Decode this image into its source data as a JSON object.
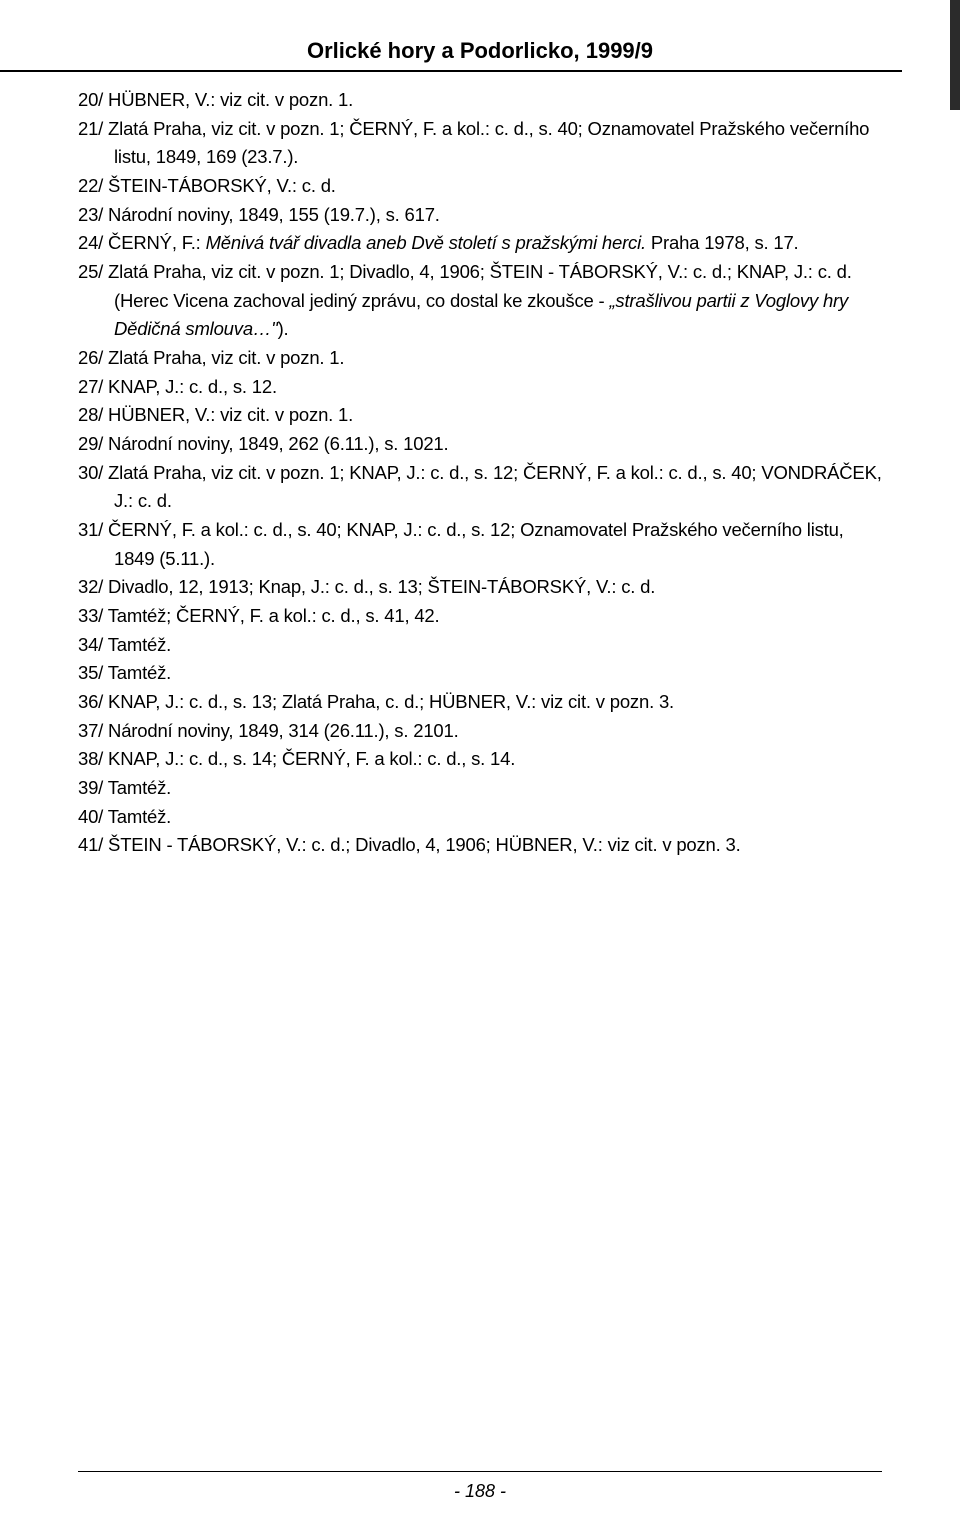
{
  "header": {
    "title": "Orlické hory a Podorlicko, 1999/9"
  },
  "references": [
    {
      "text": "20/ HÜBNER, V.: viz cit. v pozn. 1."
    },
    {
      "text": "21/ Zlatá Praha, viz cit. v pozn. 1; ČERNÝ, F. a kol.: c. d., s. 40; Oznamovatel Pražského večerního listu, 1849, 169 (23.7.)."
    },
    {
      "text": "22/ ŠTEIN-TÁBORSKÝ, V.: c. d."
    },
    {
      "text": "23/ Národní noviny, 1849, 155 (19.7.), s. 617."
    },
    {
      "html": "24/ ČERNÝ, F.: <span class=\"italic\">Měnivá tvář divadla aneb Dvě století s pražskými herci.</span> Praha 1978, s. 17."
    },
    {
      "html": "25/ Zlatá Praha, viz cit. v pozn. 1; Divadlo, 4, 1906; ŠTEIN - TÁBORSKÝ, V.: c. d.; KNAP, J.: c. d. (Herec Vicena zachoval jediný zprávu, co dostal ke zkoušce - <span class=\"italic\">„strašlivou partii z Voglovy hry Dědičná smlouva…\"</span>)."
    },
    {
      "text": "26/ Zlatá Praha, viz cit. v pozn. 1."
    },
    {
      "text": "27/ KNAP, J.: c. d., s. 12."
    },
    {
      "text": "28/ HÜBNER, V.: viz cit. v pozn. 1."
    },
    {
      "text": "29/ Národní noviny, 1849, 262 (6.11.), s. 1021."
    },
    {
      "text": "30/ Zlatá Praha, viz cit. v pozn. 1; KNAP, J.: c. d., s. 12; ČERNÝ, F. a kol.: c. d., s. 40; VONDRÁČEK, J.: c. d."
    },
    {
      "text": "31/ ČERNÝ, F. a kol.: c. d., s. 40; KNAP, J.: c. d., s. 12; Oznamovatel Pražského večerního listu, 1849 (5.11.)."
    },
    {
      "text": "32/ Divadlo, 12, 1913; Knap, J.: c. d., s. 13; ŠTEIN-TÁBORSKÝ, V.: c. d."
    },
    {
      "text": "33/ Tamtéž; ČERNÝ, F. a kol.: c. d., s. 41, 42."
    },
    {
      "text": "34/ Tamtéž."
    },
    {
      "text": "35/ Tamtéž."
    },
    {
      "text": "36/ KNAP, J.: c. d., s. 13; Zlatá Praha, c. d.; HÜBNER, V.: viz cit. v pozn. 3."
    },
    {
      "text": "37/ Národní noviny, 1849, 314 (26.11.), s. 2101."
    },
    {
      "text": "38/ KNAP, J.: c. d., s. 14; ČERNÝ, F. a kol.: c. d., s. 14."
    },
    {
      "text": "39/ Tamtéž."
    },
    {
      "text": "40/ Tamtéž."
    },
    {
      "text": "41/ ŠTEIN - TÁBORSKÝ, V.: c. d.; Divadlo, 4, 1906; HÜBNER, V.: viz cit. v pozn. 3."
    }
  ],
  "pageNumber": "- 188 -"
}
